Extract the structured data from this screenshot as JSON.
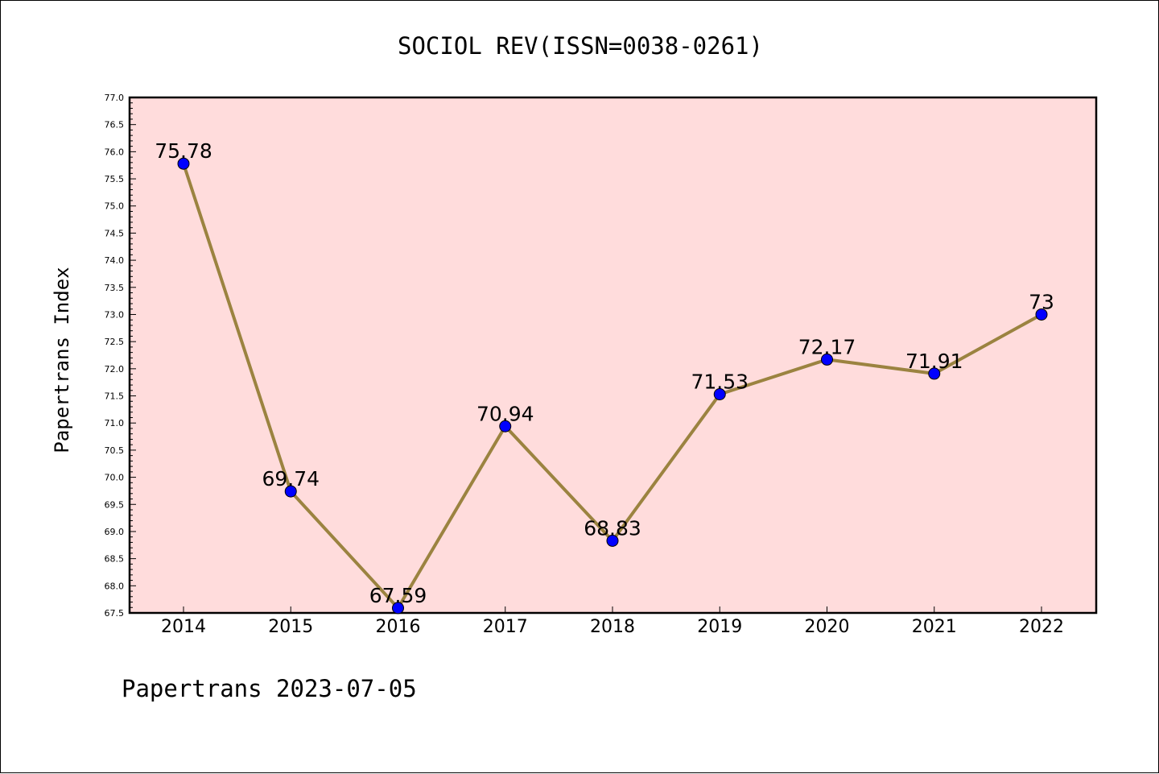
{
  "chart_data": {
    "type": "line",
    "title": "SOCIOL REV(ISSN=0038-0261)",
    "xlabel": "",
    "ylabel": "Papertrans Index",
    "categories": [
      "2014",
      "2015",
      "2016",
      "2017",
      "2018",
      "2019",
      "2020",
      "2021",
      "2022"
    ],
    "series": [
      {
        "values": [
          75.78,
          69.74,
          67.59,
          70.94,
          68.83,
          71.53,
          72.17,
          71.91,
          73
        ],
        "labels": [
          "75.78",
          "69.74",
          "67.59",
          "70.94",
          "68.83",
          "71.53",
          "72.17",
          "71.91",
          "73"
        ]
      }
    ],
    "ylim": [
      67.5,
      77.0
    ],
    "yticks": [
      "67.5",
      "68.0",
      "68.5",
      "69.0",
      "69.5",
      "70.0",
      "70.5",
      "71.0",
      "71.5",
      "72.0",
      "72.5",
      "73.0",
      "73.5",
      "74.0",
      "74.5",
      "75.0",
      "75.5",
      "76.0",
      "76.5",
      "77.0"
    ],
    "grid": false,
    "colors": {
      "plot_background": "#ffdcdc",
      "line": "#9b8340",
      "marker": "#0000ff"
    }
  },
  "footer": {
    "text": "Papertrans 2023-07-05"
  }
}
